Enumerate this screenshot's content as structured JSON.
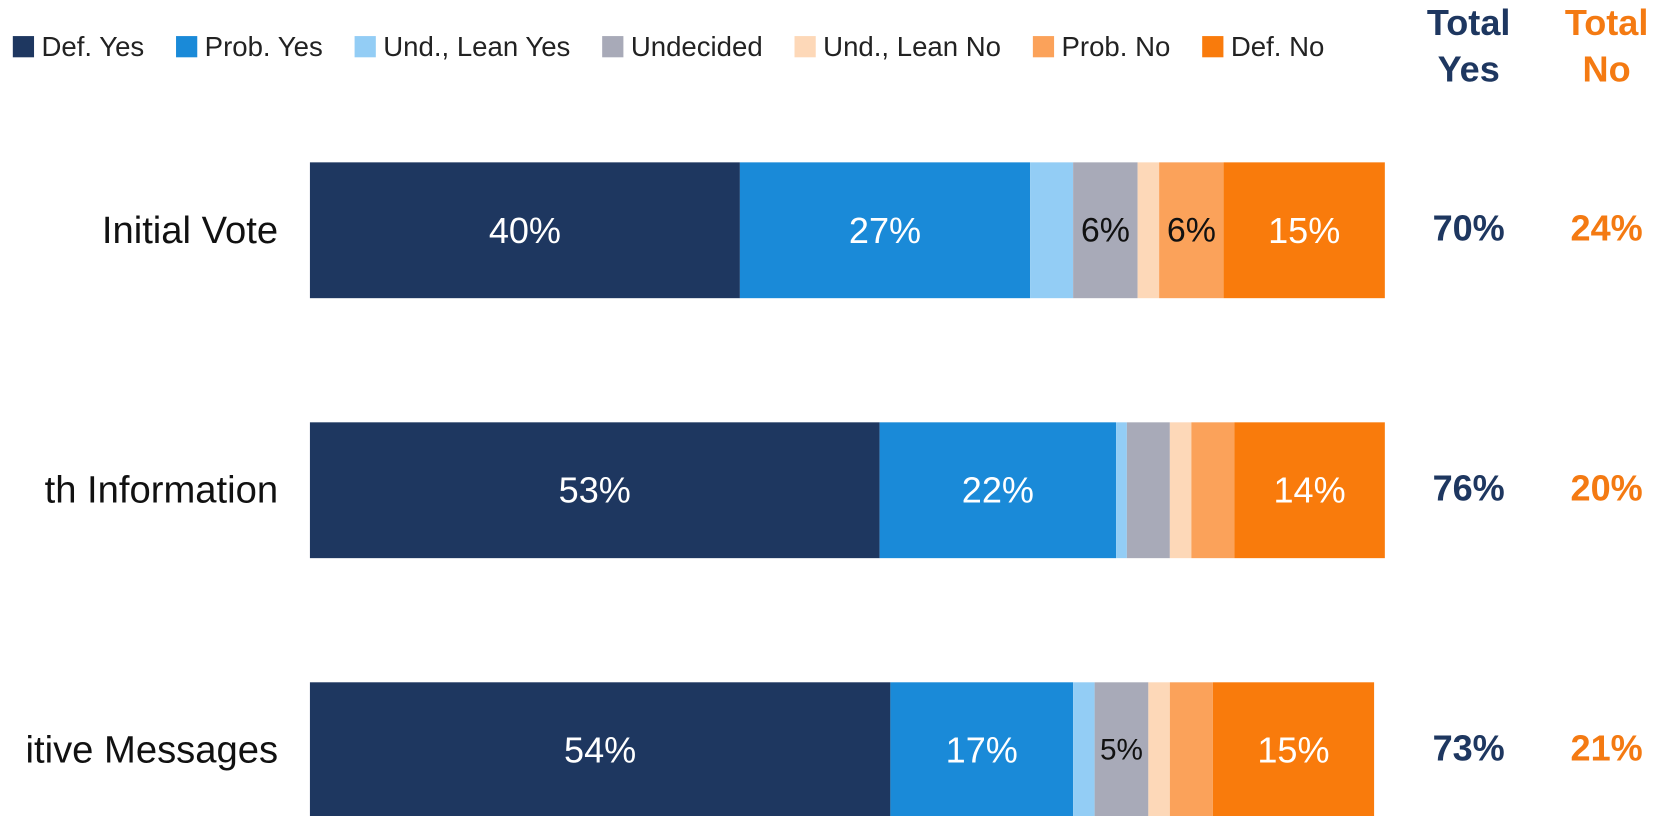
{
  "chart_data": {
    "type": "stacked-bar-horizontal",
    "categories": [
      "Initial Vote",
      "th Information",
      "itive Messages"
    ],
    "xlim": [
      0,
      100
    ],
    "series": [
      {
        "name": "Def. Yes",
        "color": "#1e3760",
        "values": [
          40,
          53,
          54
        ],
        "value_labels": [
          "40%",
          "53%",
          "54%"
        ]
      },
      {
        "name": "Prob. Yes",
        "color": "#1a8ad8",
        "values": [
          27,
          22,
          17
        ],
        "value_labels": [
          "27%",
          "22%",
          "17%"
        ]
      },
      {
        "name": "Und., Lean Yes",
        "color": "#93cdf5",
        "values": [
          4,
          1,
          2
        ],
        "value_labels": [
          null,
          null,
          null
        ]
      },
      {
        "name": "Undecided",
        "color": "#a8aab8",
        "values": [
          6,
          4,
          5
        ],
        "value_labels": [
          "6%",
          null,
          "5%"
        ]
      },
      {
        "name": "Und., Lean No",
        "color": "#fdd8b8",
        "values": [
          2,
          2,
          2
        ],
        "value_labels": [
          null,
          null,
          null
        ]
      },
      {
        "name": "Prob. No",
        "color": "#fba25a",
        "values": [
          6,
          4,
          4
        ],
        "value_labels": [
          "6%",
          null,
          null
        ]
      },
      {
        "name": "Def. No",
        "color": "#f97b0c",
        "values": [
          15,
          14,
          15
        ],
        "value_labels": [
          "15%",
          "14%",
          "15%"
        ]
      }
    ],
    "totals": [
      {
        "name": "Total Yes",
        "color": "#1e3760",
        "values": [
          70,
          76,
          73
        ],
        "value_labels": [
          "70%",
          "76%",
          "73%"
        ]
      },
      {
        "name": "Total No",
        "color": "#f47a12",
        "values": [
          24,
          20,
          21
        ],
        "value_labels": [
          "24%",
          "20%",
          "21%"
        ]
      }
    ]
  }
}
